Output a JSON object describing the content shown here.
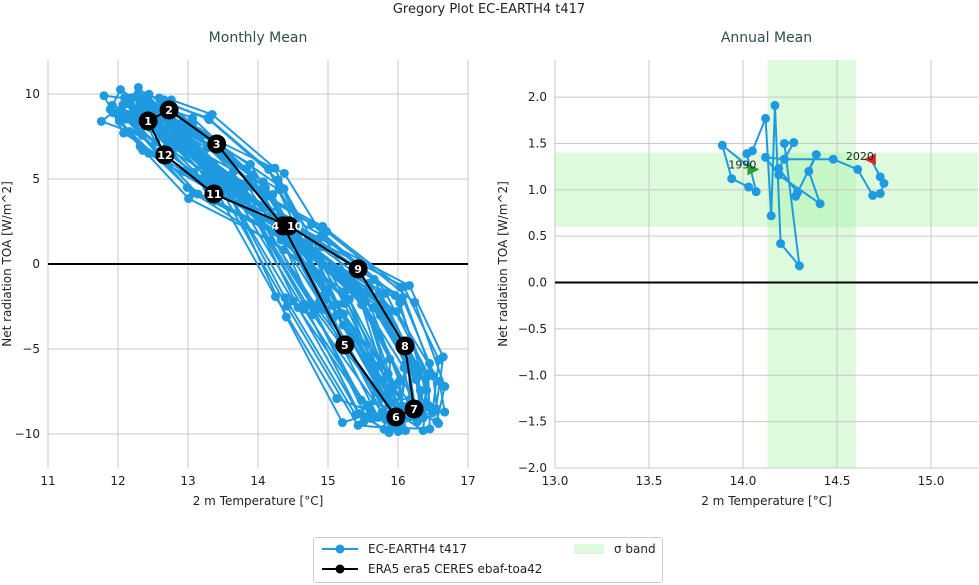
{
  "title": "Gregory Plot EC-EARTH4 t417",
  "colors": {
    "model": "#1f9ae0",
    "obs": "#000000",
    "band": "#90ee90",
    "start": "#2ca02c",
    "end": "#d62728"
  },
  "legend": {
    "placement": "bottom-center",
    "model": "EC-EARTH4 t417",
    "obs": "ERA5 era5 CERES ebaf-toa42",
    "band": "σ band"
  },
  "chart_data": [
    {
      "type": "line",
      "title": "Monthly Mean",
      "xlabel": "2 m Temperature [°C]",
      "ylabel": "Net radiation TOA [W/m^2]",
      "xlim": [
        11,
        17
      ],
      "ylim": [
        -12,
        12
      ],
      "xticks": [
        "11",
        "12",
        "13",
        "14",
        "15",
        "16",
        "17"
      ],
      "yticks": [
        "10",
        "5",
        "0",
        "−5",
        "−10"
      ],
      "ytick_values": [
        10,
        5,
        0,
        -5,
        -10
      ],
      "grid": true,
      "zero_line": 0,
      "model_mean_cycle": {
        "months": [
          1,
          2,
          3,
          4,
          5,
          6,
          7,
          8,
          9,
          10,
          11,
          12
        ],
        "x": [
          12.2,
          12.4,
          13.0,
          13.9,
          14.9,
          15.8,
          16.2,
          16.2,
          15.7,
          14.6,
          13.4,
          12.6
        ],
        "y": [
          9.0,
          9.3,
          7.8,
          4.8,
          -2.5,
          -8.8,
          -9.0,
          -6.5,
          -2.0,
          1.5,
          4.6,
          7.5
        ]
      },
      "model_year_offsets": [
        [
          -0.4,
          0.3
        ],
        [
          -0.3,
          -0.2
        ],
        [
          -0.25,
          0.4
        ],
        [
          -0.2,
          -0.4
        ],
        [
          -0.15,
          0.1
        ],
        [
          -0.1,
          0.5
        ],
        [
          -0.1,
          -0.3
        ],
        [
          -0.05,
          0.2
        ],
        [
          0,
          -0.5
        ],
        [
          0,
          0.3
        ],
        [
          0.05,
          -0.1
        ],
        [
          0.1,
          0.4
        ],
        [
          0.1,
          -0.3
        ],
        [
          0.15,
          0.1
        ],
        [
          0.2,
          -0.4
        ],
        [
          0.2,
          0.3
        ],
        [
          0.25,
          -0.2
        ],
        [
          0.3,
          0.2
        ],
        [
          -0.35,
          -0.1
        ],
        [
          -0.2,
          0.2
        ],
        [
          0.05,
          0.5
        ],
        [
          0.15,
          -0.5
        ],
        [
          0.3,
          -0.1
        ],
        [
          -0.3,
          0.5
        ],
        [
          0.1,
          0.0
        ],
        [
          -0.15,
          -0.45
        ],
        [
          0.25,
          0.45
        ],
        [
          0.0,
          0.0
        ],
        [
          -0.05,
          -0.2
        ],
        [
          0.2,
          0.1
        ]
      ],
      "obs": {
        "name": "ERA5 era5 CERES ebaf-toa42",
        "labels": [
          "1",
          "2",
          "3",
          "4",
          "5",
          "6",
          "7",
          "8",
          "9",
          "10",
          "11",
          "12"
        ],
        "x": [
          12.43,
          12.73,
          13.41,
          14.36,
          15.24,
          15.97,
          16.23,
          16.1,
          15.43,
          14.44,
          13.37,
          12.67
        ],
        "y": [
          8.41,
          9.06,
          7.06,
          2.24,
          -4.76,
          -9.0,
          -8.53,
          -4.82,
          -0.29,
          2.24,
          4.12,
          6.41
        ]
      }
    },
    {
      "type": "line",
      "title": "Annual Mean",
      "xlabel": "2 m Temperature [°C]",
      "ylabel": "Net radiation TOA [W/m^2]",
      "xlim": [
        13.0,
        15.25
      ],
      "ylim": [
        -2.0,
        2.4
      ],
      "xticks": [
        "13.0",
        "13.5",
        "14.0",
        "14.5",
        "15.0"
      ],
      "xtick_values": [
        13.0,
        13.5,
        14.0,
        14.5,
        15.0
      ],
      "yticks": [
        "2.0",
        "1.5",
        "1.0",
        "0.5",
        "0.0",
        "−0.5",
        "−1.0",
        "−1.5",
        "−2.0"
      ],
      "ytick_values": [
        2.0,
        1.5,
        1.0,
        0.5,
        0.0,
        -0.5,
        -1.0,
        -1.5,
        -2.0
      ],
      "grid": true,
      "zero_line": 0,
      "sigma_band": {
        "x": [
          14.13,
          14.6
        ],
        "y": [
          0.6,
          1.4
        ]
      },
      "start_label": "1990",
      "end_label": "2020",
      "model": {
        "name": "EC-EARTH4 t417",
        "x": [
          14.05,
          13.89,
          13.94,
          14.03,
          14.07,
          14.02,
          14.05,
          14.12,
          14.15,
          14.17,
          14.2,
          14.3,
          14.22,
          14.27,
          14.22,
          14.19,
          14.29,
          14.28,
          14.39,
          14.35,
          14.41,
          14.19,
          14.12,
          14.22,
          14.48,
          14.61,
          14.69,
          14.73,
          14.75,
          14.73,
          14.68
        ],
        "y": [
          1.22,
          1.48,
          1.12,
          1.03,
          0.98,
          1.39,
          1.42,
          1.77,
          0.72,
          1.91,
          0.42,
          0.18,
          1.5,
          1.51,
          1.33,
          1.23,
          0.97,
          0.93,
          1.38,
          1.2,
          0.85,
          1.16,
          1.35,
          1.33,
          1.33,
          1.22,
          0.94,
          0.96,
          1.07,
          1.14,
          1.33
        ]
      }
    }
  ]
}
